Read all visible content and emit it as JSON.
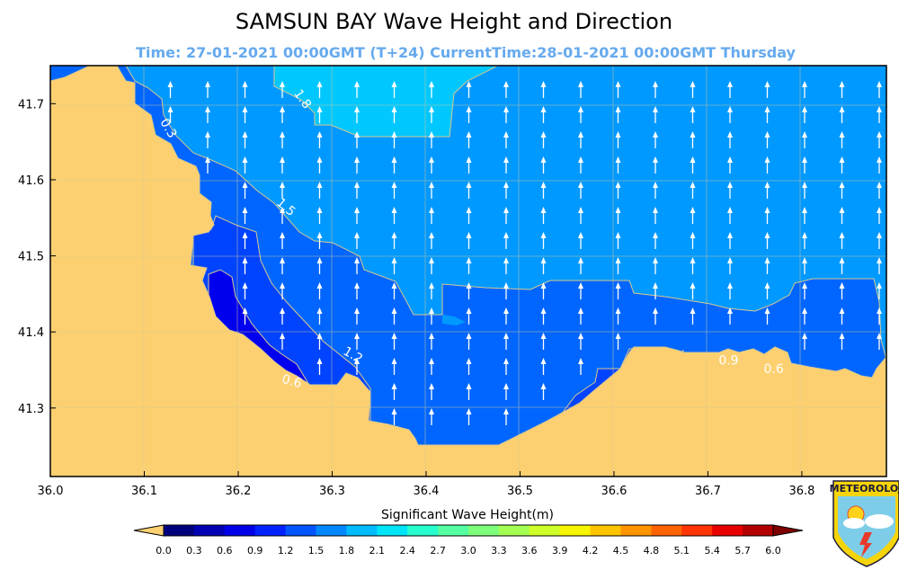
{
  "title": "SAMSUN BAY Wave Height and Direction",
  "subtitle": "Time: 27-01-2021 00:00GMT (T+24)  CurrentTime:28-01-2021 00:00GMT Thursday",
  "colorbar": {
    "title": "Significant Wave Height(m)",
    "ticks": [
      "0.0",
      "0.3",
      "0.6",
      "0.9",
      "1.2",
      "1.5",
      "1.8",
      "2.1",
      "2.4",
      "2.7",
      "3.0",
      "3.3",
      "3.6",
      "3.9",
      "4.2",
      "4.5",
      "4.8",
      "5.1",
      "5.4",
      "5.7",
      "6.0"
    ],
    "colors": [
      "#00007f",
      "#0000b2",
      "#0000e8",
      "#0022ff",
      "#0055ff",
      "#0088ff",
      "#00bbff",
      "#00e4f8",
      "#28ffce",
      "#55ffa1",
      "#7dff79",
      "#a4ff53",
      "#ceff28",
      "#f8f500",
      "#ffc400",
      "#ff9400",
      "#ff6300",
      "#ff3400",
      "#e80000",
      "#b20000"
    ],
    "under_color": "#fcd070",
    "over_color": "#7f0000"
  },
  "logo": {
    "text": "METEOROLOJ"
  },
  "chart_data": {
    "type": "heatmap",
    "title": "SAMSUN BAY Wave Height and Direction",
    "xlabel": "",
    "ylabel": "",
    "x_ticks": [
      "36.0",
      "36.1",
      "36.2",
      "36.3",
      "36.4",
      "36.5",
      "36.6",
      "36.7",
      "36.8"
    ],
    "y_ticks": [
      "41.7",
      "41.6",
      "41.5",
      "41.4",
      "41.3"
    ],
    "xlim": [
      36.0,
      36.89
    ],
    "ylim": [
      41.21,
      41.75
    ],
    "grid": true,
    "contour_labels": [
      {
        "text": "1.8",
        "lon": 36.265,
        "lat": 41.703,
        "rot": 55
      },
      {
        "text": "0.3",
        "lon": 36.122,
        "lat": 41.665,
        "rot": 60
      },
      {
        "text": "1.5",
        "lon": 36.248,
        "lat": 41.56,
        "rot": 40
      },
      {
        "text": "1.2",
        "lon": 36.32,
        "lat": 41.365,
        "rot": 30
      },
      {
        "text": "0.6",
        "lon": 36.256,
        "lat": 41.33,
        "rot": 15
      },
      {
        "text": "0.9",
        "lon": 36.722,
        "lat": 41.357,
        "rot": 0
      },
      {
        "text": "0.6",
        "lon": 36.77,
        "lat": 41.346,
        "rot": 0
      }
    ],
    "land_color": "#fcd070",
    "wave_direction": "north (toward top), arrows white",
    "regions": [
      {
        "height_band": "1.8-2.1",
        "color": "#00c8ff"
      },
      {
        "height_band": "1.5-1.8",
        "color": "#0099ff"
      },
      {
        "height_band": "1.2-1.5",
        "color": "#0066ff"
      },
      {
        "height_band": "0.9-1.2",
        "color": "#0044ff"
      },
      {
        "height_band": "0.6-0.9",
        "color": "#0000ee"
      }
    ]
  }
}
